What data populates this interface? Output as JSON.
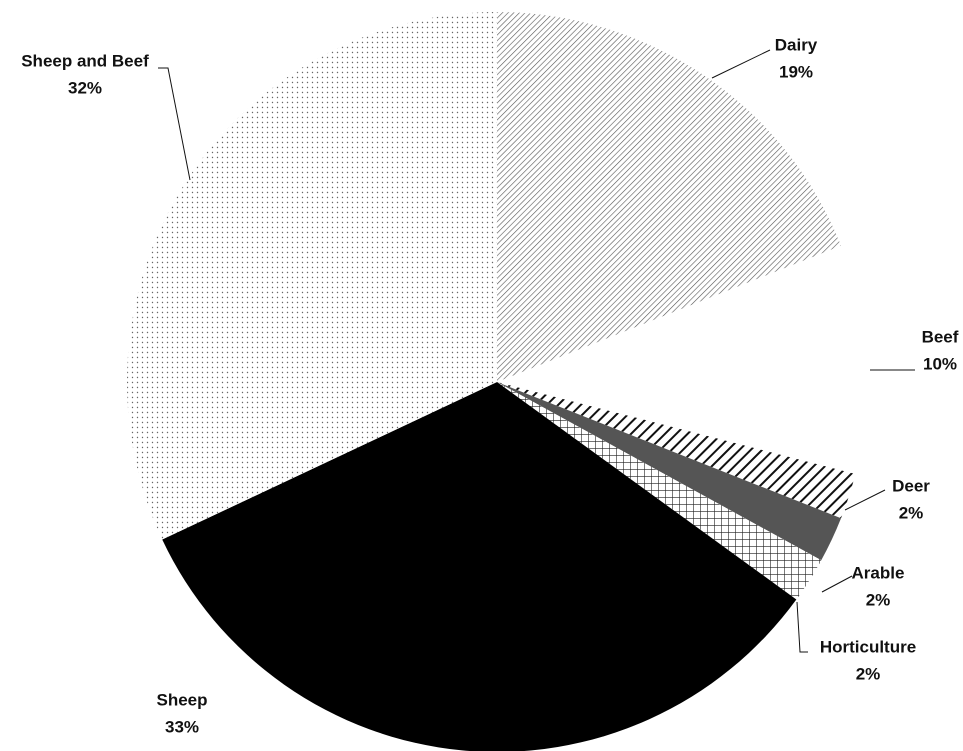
{
  "chart_data": {
    "type": "pie",
    "categories": [
      "Dairy",
      "Beef",
      "Deer",
      "Arable",
      "Horticulture",
      "Sheep",
      "Sheep and Beef"
    ],
    "values": [
      19,
      10,
      2,
      2,
      2,
      33,
      32
    ],
    "value_labels": [
      "19%",
      "10%",
      "2%",
      "2%",
      "2%",
      "33%",
      "32%"
    ],
    "colors": [
      "#777777",
      "#ffffff",
      "#111111",
      "#555555",
      "#222222",
      "#000000",
      "#666666"
    ],
    "patterns": [
      "fine-diagonal",
      "none",
      "bold-diagonal",
      "none",
      "crosshatch",
      "none",
      "dots"
    ]
  }
}
